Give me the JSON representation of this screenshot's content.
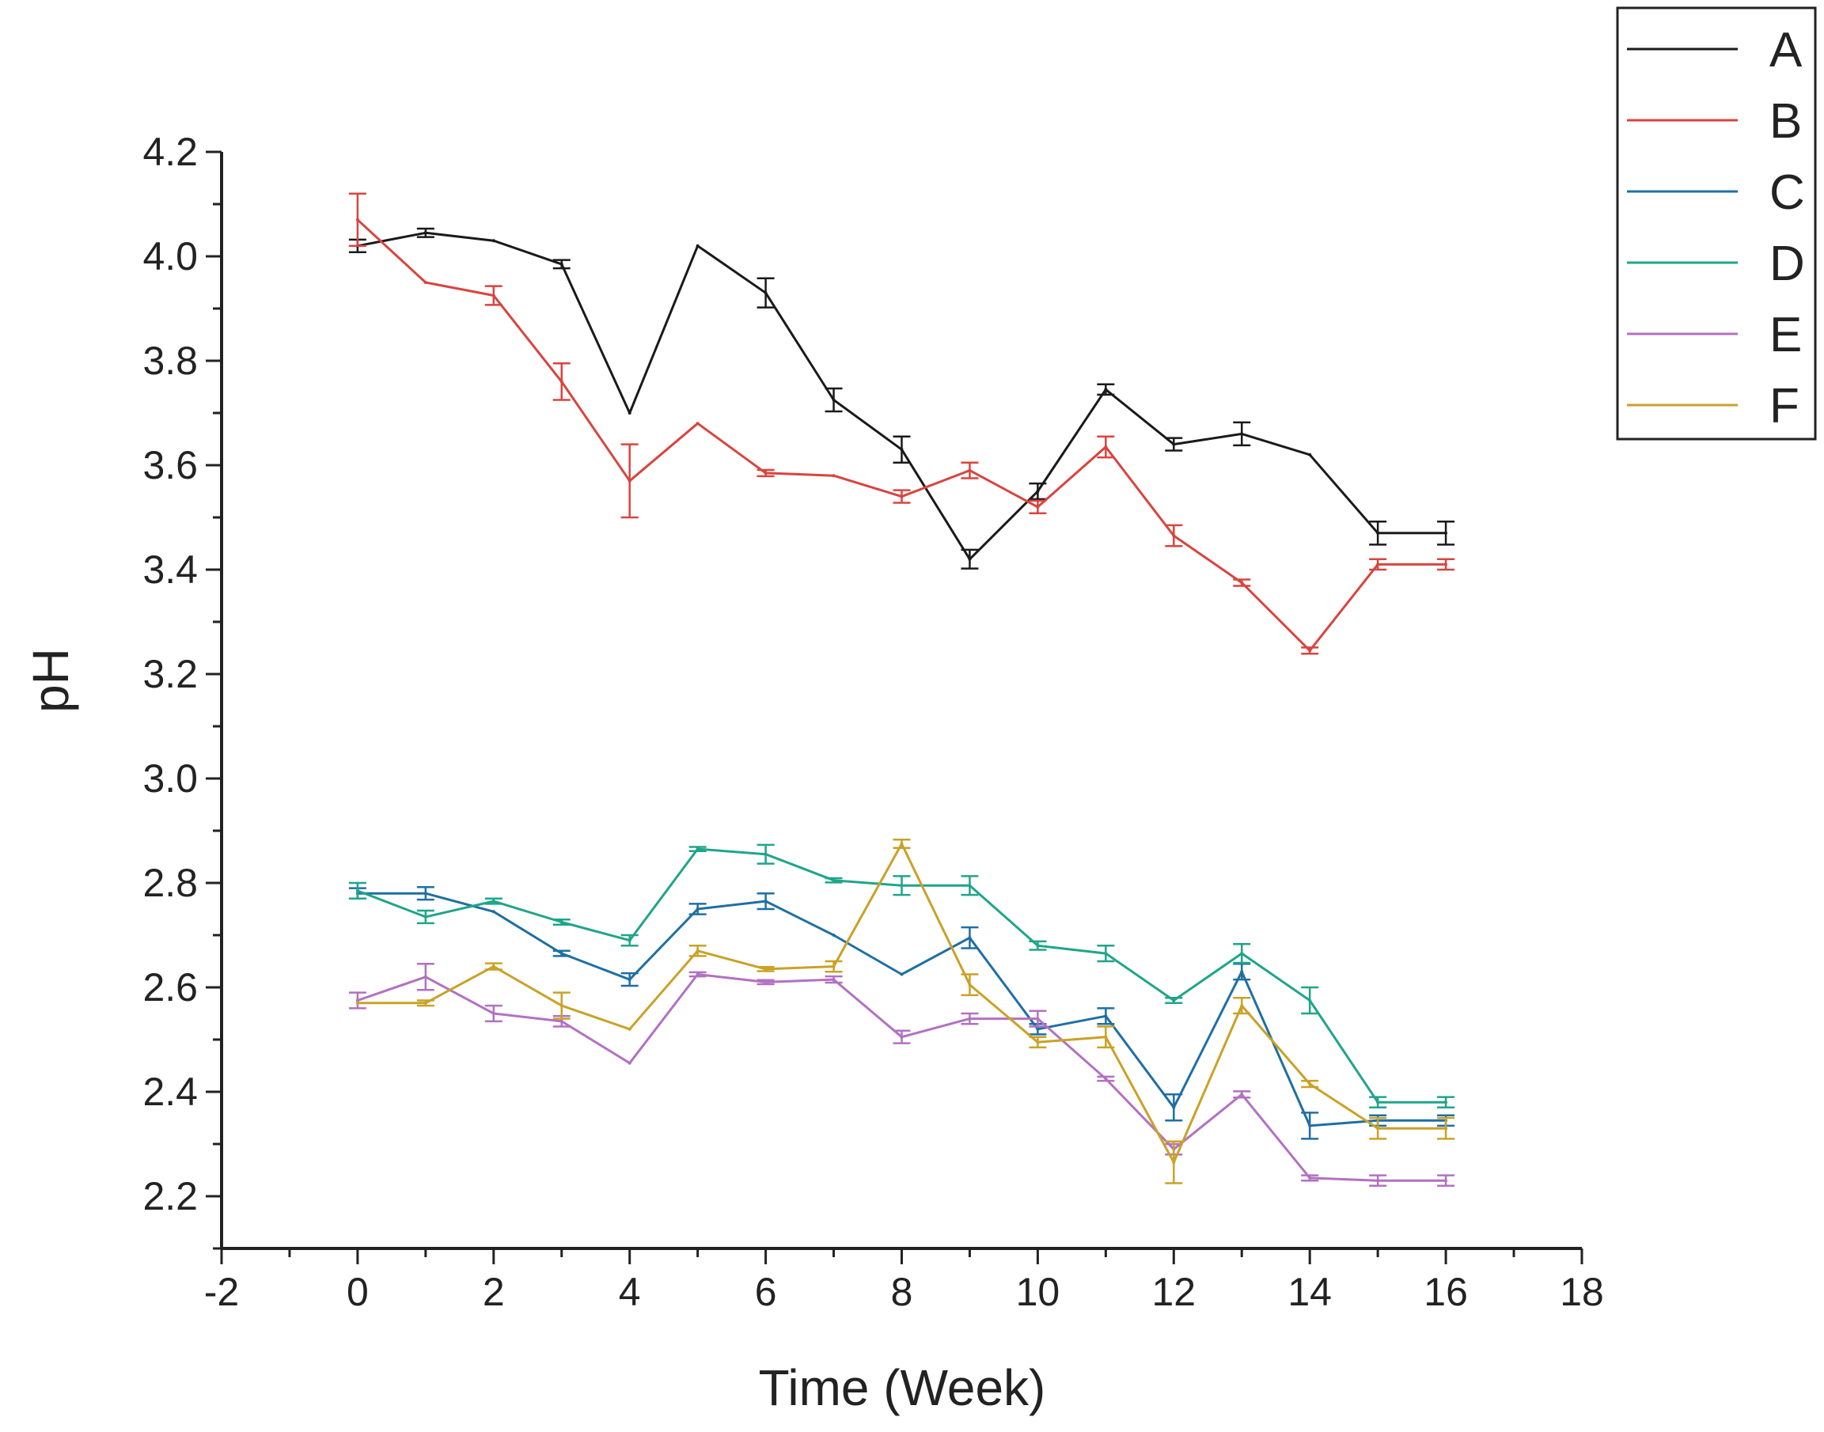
{
  "chart_data": {
    "type": "line",
    "title": "",
    "xlabel": "Time (Week)",
    "ylabel": "pH",
    "xlim": [
      -2,
      18
    ],
    "ylim": [
      2.1,
      4.2
    ],
    "xticks": [
      -2,
      0,
      2,
      4,
      6,
      8,
      10,
      12,
      14,
      16,
      18
    ],
    "xtick_labels": [
      "-2",
      "0",
      "2",
      "4",
      "6",
      "8",
      "10",
      "12",
      "14",
      "16",
      "18"
    ],
    "yticks": [
      2.2,
      2.4,
      2.6,
      2.8,
      3.0,
      3.2,
      3.4,
      3.6,
      3.8,
      4.0,
      4.2
    ],
    "ytick_labels": [
      "2.2",
      "2.4",
      "2.6",
      "2.8",
      "3.0",
      "3.2",
      "3.4",
      "3.6",
      "3.8",
      "4.0",
      "4.2"
    ],
    "grid": false,
    "legend_position": "top-right",
    "x": [
      0,
      1,
      2,
      3,
      4,
      5,
      6,
      7,
      8,
      9,
      10,
      11,
      12,
      13,
      14,
      15,
      16
    ],
    "series": [
      {
        "name": "A",
        "color": "#1a1a1a",
        "values": [
          4.02,
          4.045,
          4.03,
          3.985,
          3.7,
          4.02,
          3.93,
          3.725,
          3.63,
          3.42,
          3.55,
          3.745,
          3.64,
          3.66,
          3.62,
          3.47,
          3.47
        ],
        "errors": [
          0.012,
          0.008,
          0,
          0.008,
          0,
          0,
          0.028,
          0.022,
          0.025,
          0.018,
          0.015,
          0.01,
          0.012,
          0.022,
          0,
          0.022,
          0.022
        ]
      },
      {
        "name": "B",
        "color": "#d9443f",
        "values": [
          4.07,
          3.95,
          3.925,
          3.76,
          3.57,
          3.68,
          3.585,
          3.58,
          3.54,
          3.59,
          3.52,
          3.635,
          3.465,
          3.375,
          3.245,
          3.41,
          3.41
        ],
        "errors": [
          0.05,
          0,
          0.018,
          0.035,
          0.07,
          0,
          0.006,
          0,
          0.012,
          0.015,
          0.012,
          0.02,
          0.02,
          0.006,
          0.006,
          0.01,
          0.01
        ]
      },
      {
        "name": "C",
        "color": "#1f6fa3",
        "values": [
          2.78,
          2.78,
          2.745,
          2.665,
          2.615,
          2.75,
          2.765,
          2.7,
          2.625,
          2.695,
          2.52,
          2.545,
          2.37,
          2.63,
          2.335,
          2.345,
          2.345
        ],
        "errors": [
          0.01,
          0.012,
          0,
          0.005,
          0.012,
          0.01,
          0.015,
          0,
          0,
          0.02,
          0.01,
          0.015,
          0.025,
          0.015,
          0.025,
          0.01,
          0.01
        ]
      },
      {
        "name": "D",
        "color": "#1fa58a",
        "values": [
          2.785,
          2.735,
          2.765,
          2.725,
          2.69,
          2.865,
          2.855,
          2.805,
          2.795,
          2.795,
          2.68,
          2.665,
          2.575,
          2.665,
          2.575,
          2.38,
          2.38
        ],
        "errors": [
          0.015,
          0.012,
          0.005,
          0.005,
          0.01,
          0.004,
          0.018,
          0.004,
          0.018,
          0.018,
          0.008,
          0.015,
          0.005,
          0.018,
          0.025,
          0.01,
          0.01
        ]
      },
      {
        "name": "E",
        "color": "#b271c2",
        "values": [
          2.575,
          2.62,
          2.55,
          2.535,
          2.455,
          2.625,
          2.61,
          2.615,
          2.505,
          2.54,
          2.54,
          2.425,
          2.29,
          2.395,
          2.235,
          2.23,
          2.23
        ],
        "errors": [
          0.015,
          0.025,
          0.015,
          0.01,
          0,
          0.004,
          0.004,
          0.006,
          0.012,
          0.01,
          0.015,
          0.004,
          0.01,
          0.006,
          0.005,
          0.01,
          0.01
        ]
      },
      {
        "name": "F",
        "color": "#c9a227",
        "values": [
          2.57,
          2.57,
          2.64,
          2.565,
          2.52,
          2.67,
          2.635,
          2.64,
          2.875,
          2.605,
          2.495,
          2.505,
          2.265,
          2.565,
          2.415,
          2.33,
          2.33
        ],
        "errors": [
          0,
          0.005,
          0.006,
          0.025,
          0,
          0.01,
          0.004,
          0.01,
          0.008,
          0.02,
          0.01,
          0.02,
          0.04,
          0.015,
          0.006,
          0.02,
          0.02
        ]
      }
    ]
  }
}
